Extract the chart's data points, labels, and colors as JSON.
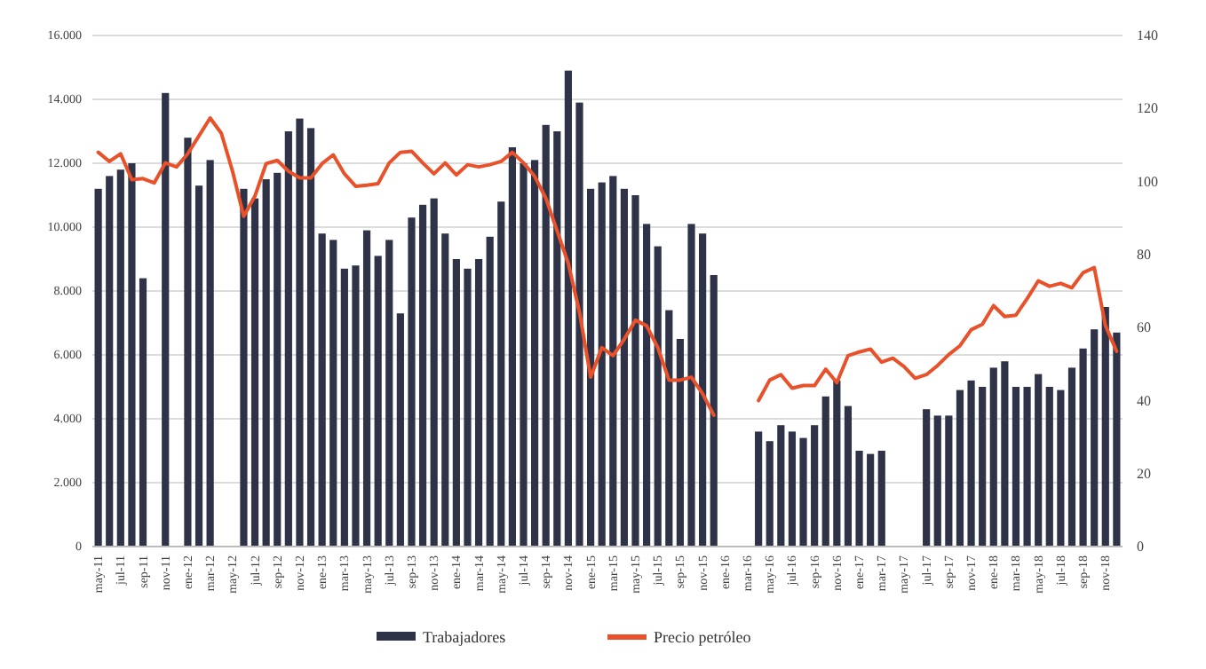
{
  "chart_data": {
    "type": "bar",
    "categories": [
      "may-11",
      null,
      "jul-11",
      null,
      "sep-11",
      null,
      "nov-11",
      null,
      "ene-12",
      null,
      "mar-12",
      null,
      "may-12",
      null,
      "jul-12",
      null,
      "sep-12",
      null,
      "nov-12",
      null,
      "ene-13",
      null,
      "mar-13",
      null,
      "may-13",
      null,
      "jul-13",
      null,
      "sep-13",
      null,
      "nov-13",
      null,
      "ene-14",
      null,
      "mar-14",
      null,
      "may-14",
      null,
      "jul-14",
      null,
      "sep-14",
      null,
      "nov-14",
      null,
      "ene-15",
      null,
      "mar-15",
      null,
      "may-15",
      null,
      "jul-15",
      null,
      "sep-15",
      null,
      "nov-15",
      null,
      "ene-16",
      null,
      "mar-16",
      null,
      "may-16",
      null,
      "jul-16",
      null,
      "sep-16",
      null,
      "nov-16",
      null,
      "ene-17",
      null,
      "mar-17",
      null,
      "may-17",
      null,
      "jul-17",
      null,
      "sep-17",
      null,
      "nov-17",
      null,
      "ene-18",
      null,
      "mar-18",
      null,
      "may-18",
      null,
      "jul-18",
      null,
      "sep-18",
      null,
      "nov-18",
      null
    ],
    "series": [
      {
        "name": "Trabajadores",
        "axis": "y",
        "color": "#2e3348",
        "values": [
          11200,
          11600,
          11800,
          12000,
          8400,
          null,
          14200,
          null,
          12800,
          11300,
          12100,
          null,
          null,
          11200,
          10900,
          11500,
          11700,
          13000,
          13400,
          13100,
          9800,
          9600,
          8700,
          8800,
          9900,
          9100,
          9600,
          7300,
          10300,
          10700,
          10900,
          9800,
          9000,
          8700,
          9000,
          9700,
          10800,
          12500,
          12000,
          12100,
          13200,
          13000,
          14900,
          13900,
          11200,
          11400,
          11600,
          11200,
          11000,
          10100,
          9400,
          7400,
          6500,
          10100,
          9800,
          8500,
          null,
          null,
          null,
          3600,
          3300,
          3800,
          3600,
          3400,
          3800,
          4700,
          5200,
          4400,
          3000,
          2900,
          3000,
          null,
          null,
          null,
          4300,
          4100,
          4100,
          4900,
          5200,
          5000,
          5600,
          5800,
          5000,
          5000,
          5400,
          5000,
          4900,
          5600,
          6200,
          6800,
          7500,
          6700
        ]
      },
      {
        "name": "Precio petróleo",
        "type": "line",
        "axis": "y2",
        "color": "#e8512a",
        "values": [
          108,
          105.5,
          107.6,
          100.5,
          100.8,
          99.6,
          105.1,
          104,
          107.6,
          112.5,
          117.4,
          113.2,
          102.8,
          90.5,
          96,
          104.9,
          105.8,
          102.8,
          101,
          101,
          104.9,
          107.3,
          102.1,
          98.7,
          99,
          99.4,
          105.1,
          108,
          108.3,
          105.1,
          102.1,
          105.1,
          101.8,
          104.6,
          104,
          104.6,
          105.5,
          108,
          105.1,
          101.4,
          95.4,
          86.5,
          77.6,
          64.2,
          46.4,
          54.5,
          52.3,
          56.8,
          62,
          60.5,
          54.5,
          45.6,
          45.6,
          46.4,
          41.9,
          36,
          null,
          null,
          null,
          40,
          45.6,
          47.1,
          43.4,
          44.1,
          44.1,
          48.6,
          44.9,
          52.3,
          53.3,
          54.1,
          50.5,
          51.6,
          49.3,
          46.1,
          47.1,
          49.6,
          52.6,
          55,
          59.4,
          60.9,
          66,
          63,
          63.4,
          67.9,
          72.8,
          71.3,
          72.1,
          70.9,
          75,
          76.4,
          60.5,
          53.5
        ]
      }
    ],
    "ylim": [
      0,
      16000
    ],
    "yticks": [
      0,
      {
        "value": 2000,
        "label": "2.000"
      },
      {
        "value": 4000,
        "label": "4.000"
      },
      {
        "value": 6000,
        "label": "6.000"
      },
      {
        "value": 8000,
        "label": "8.000"
      },
      {
        "value": 10000,
        "label": "10.000"
      },
      {
        "value": 12000,
        "label": "12.000"
      },
      {
        "value": 14000,
        "label": "14.000"
      },
      {
        "value": 16000,
        "label": "16.000"
      }
    ],
    "y2lim": [
      0,
      140
    ],
    "y2ticks": [
      0,
      20,
      40,
      60,
      80,
      100,
      120,
      140
    ],
    "grid": "y",
    "legend": "bottom"
  }
}
